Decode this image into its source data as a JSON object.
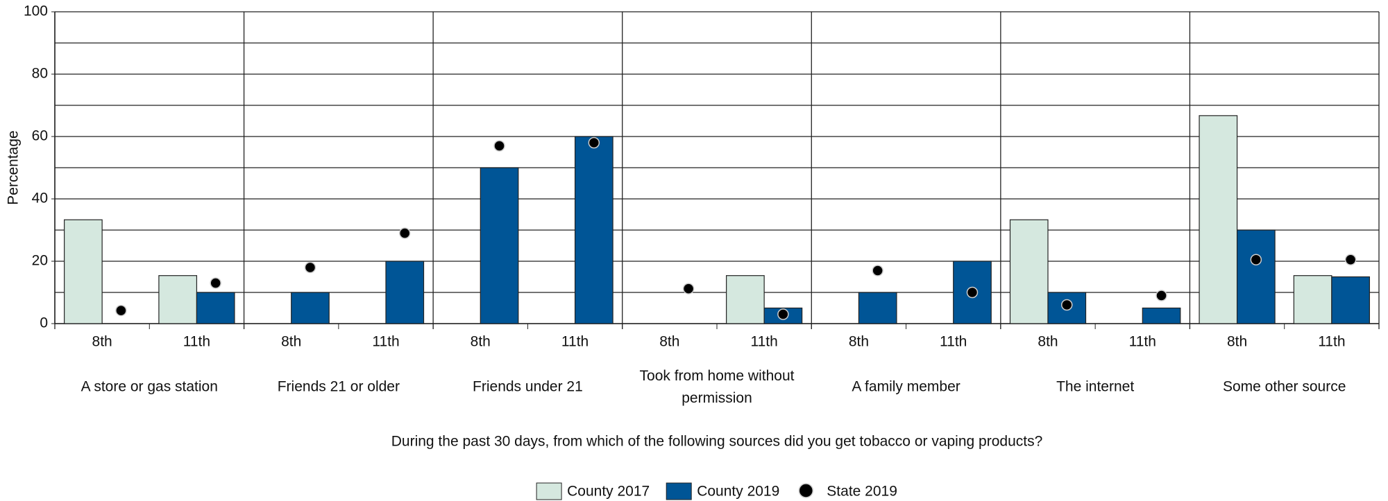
{
  "chart_data": {
    "type": "bar",
    "y_label": "Percentage",
    "x_label": "During the past 30 days, from which of the following sources did you get tobacco or vaping products?",
    "groups": [
      "A store or gas station",
      "Friends 21 or older",
      "Friends under 21",
      "Took from home without permission",
      "A family member",
      "The internet",
      "Some other source"
    ],
    "categories": [
      "8th",
      "11th",
      "8th",
      "11th",
      "8th",
      "11th",
      "8th",
      "11th",
      "8th",
      "11th",
      "8th",
      "11th",
      "8th",
      "11th"
    ],
    "series": [
      {
        "name": "County 2017",
        "color": "#d5e8df",
        "mark": "bar",
        "values": [
          33.3,
          15.4,
          null,
          null,
          null,
          null,
          null,
          15.4,
          null,
          null,
          33.3,
          null,
          66.7,
          15.4
        ]
      },
      {
        "name": "County 2019",
        "color": "#005596",
        "mark": "bar",
        "values": [
          null,
          10,
          10,
          20,
          50,
          60,
          null,
          5,
          10,
          20,
          10,
          5,
          30,
          15
        ]
      },
      {
        "name": "State 2019",
        "color": "#000000",
        "mark": "dot",
        "values": [
          4.2,
          13,
          18,
          29,
          57,
          58,
          11.2,
          3,
          17,
          10,
          6,
          9,
          20.5,
          20.5
        ]
      }
    ],
    "ylim": [
      0,
      100
    ],
    "yticks": [
      0,
      20,
      40,
      60,
      80,
      100
    ],
    "minor_yticks": [
      10,
      30,
      50,
      70,
      90
    ],
    "grid": true,
    "legend": "bottom"
  }
}
